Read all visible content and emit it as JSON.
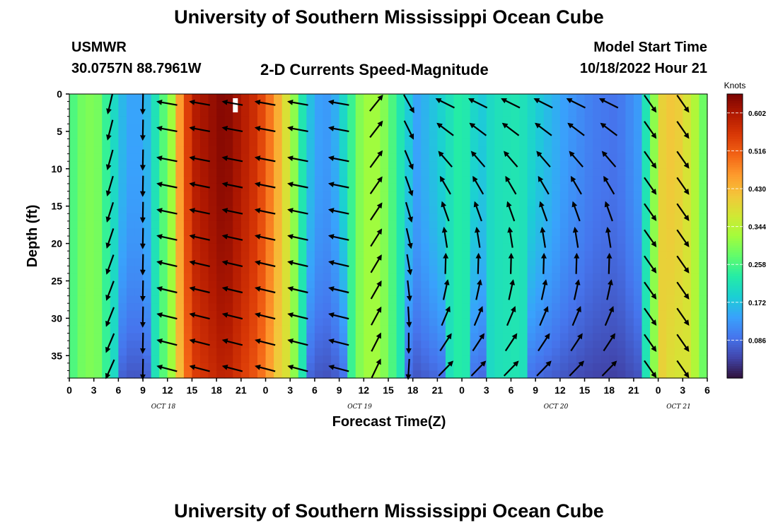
{
  "page": {
    "title_top": "University of Southern Mississippi Ocean Cube",
    "title_bottom": "University of Southern Mississippi Ocean Cube",
    "station_name": "USMWR",
    "station_coords": "30.0757N  88.7961W",
    "plot_title": "2-D Currents Speed-Magnitude",
    "model_start_label": "Model Start Time",
    "model_start_value": "10/18/2022 Hour 21"
  },
  "chart_data": {
    "type": "heatmap",
    "title": "2-D Currents Speed-Magnitude",
    "xlabel": "Forecast Time(Z)",
    "ylabel": "Depth (ft)",
    "x_ticks": [
      "0",
      "3",
      "6",
      "9",
      "12",
      "15",
      "18",
      "21",
      "0",
      "3",
      "6",
      "9",
      "12",
      "15",
      "18",
      "21",
      "0",
      "3",
      "6",
      "9",
      "12",
      "15",
      "18",
      "21",
      "0",
      "3",
      "6"
    ],
    "x_date_labels": [
      {
        "label": "OCT 18",
        "hour": 11.5
      },
      {
        "label": "OCT 19",
        "hour": 35.5
      },
      {
        "label": "OCT 20",
        "hour": 59.5
      },
      {
        "label": "OCT 21",
        "hour": 74.5
      }
    ],
    "xlim": [
      0,
      78
    ],
    "y_ticks": [
      0,
      5,
      10,
      15,
      20,
      25,
      30,
      35
    ],
    "ylim": [
      0,
      38
    ],
    "y_inverted": true,
    "colorbar": {
      "title": "Knots",
      "ticks": [
        "0.602",
        "0.516",
        "0.430",
        "0.344",
        "0.258",
        "0.172",
        "0.086"
      ],
      "range": [
        0,
        0.645
      ],
      "colors": [
        "#30123b",
        "#4145ab",
        "#4675ed",
        "#39a2fc",
        "#1bcfd4",
        "#24eca6",
        "#61fc6c",
        "#a4fc3b",
        "#d1e834",
        "#f3c63a",
        "#fe9b2d",
        "#f36315",
        "#d93806",
        "#b11901",
        "#7a0403"
      ]
    },
    "speed_profile": {
      "hours": [
        0,
        2,
        3.5,
        5,
        6.5,
        8,
        9.5,
        11,
        12.5,
        13.5,
        15,
        19,
        21,
        23,
        25,
        27,
        28.5,
        30,
        31.5,
        32.5,
        34,
        35.5,
        37,
        38.5,
        40,
        42.5,
        45,
        47.5,
        49,
        50,
        52,
        55,
        58,
        61,
        64,
        67,
        69.5,
        71,
        72.5,
        74,
        76,
        78
      ],
      "surface_speed_knots": [
        0.25,
        0.3,
        0.29,
        0.22,
        0.16,
        0.13,
        0.16,
        0.24,
        0.32,
        0.46,
        0.59,
        0.64,
        0.6,
        0.56,
        0.47,
        0.35,
        0.22,
        0.14,
        0.13,
        0.15,
        0.22,
        0.3,
        0.33,
        0.3,
        0.24,
        0.14,
        0.18,
        0.23,
        0.22,
        0.17,
        0.21,
        0.22,
        0.17,
        0.13,
        0.1,
        0.09,
        0.13,
        0.26,
        0.4,
        0.42,
        0.36,
        0.26
      ]
    },
    "vectors": {
      "hours": [
        5,
        9,
        12,
        16,
        20,
        24,
        28,
        33,
        37.5,
        41.5,
        46,
        50,
        54,
        58,
        62,
        66,
        71,
        75
      ],
      "depths_ft": [
        0.5,
        4,
        8,
        11.5,
        15,
        18.5,
        22,
        25.5,
        29,
        32.5,
        36
      ],
      "direction_note": "arrows point toward the flow direction"
    }
  }
}
